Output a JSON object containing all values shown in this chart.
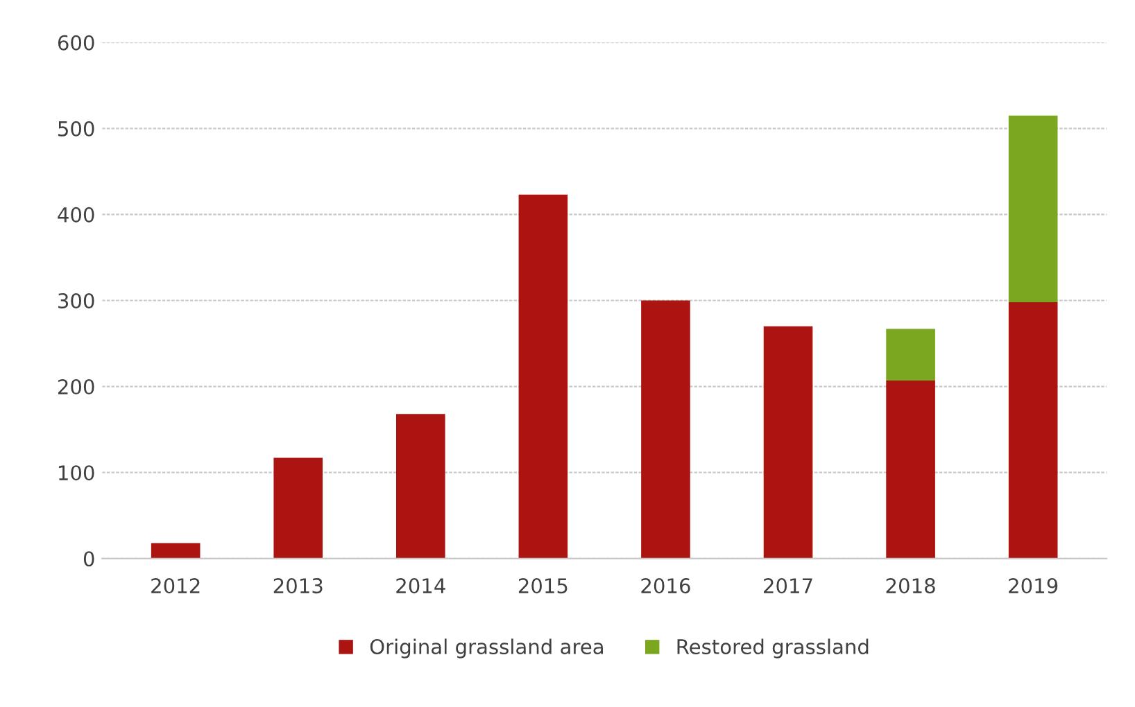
{
  "chart_data": {
    "type": "bar",
    "stacked": true,
    "categories": [
      "2012",
      "2013",
      "2014",
      "2015",
      "2016",
      "2017",
      "2018",
      "2019"
    ],
    "series": [
      {
        "name": "Original grassland area",
        "color": "#ab1410",
        "values": [
          18,
          117,
          168,
          423,
          300,
          270,
          207,
          298
        ]
      },
      {
        "name": "Restored grassland",
        "color": "#7ba61f",
        "values": [
          null,
          null,
          null,
          null,
          null,
          null,
          60,
          217
        ]
      }
    ],
    "ylim": [
      0,
      600
    ],
    "yticks": [
      0,
      100,
      200,
      300,
      400,
      500,
      600
    ],
    "grid": "y",
    "legend": "bottom"
  }
}
